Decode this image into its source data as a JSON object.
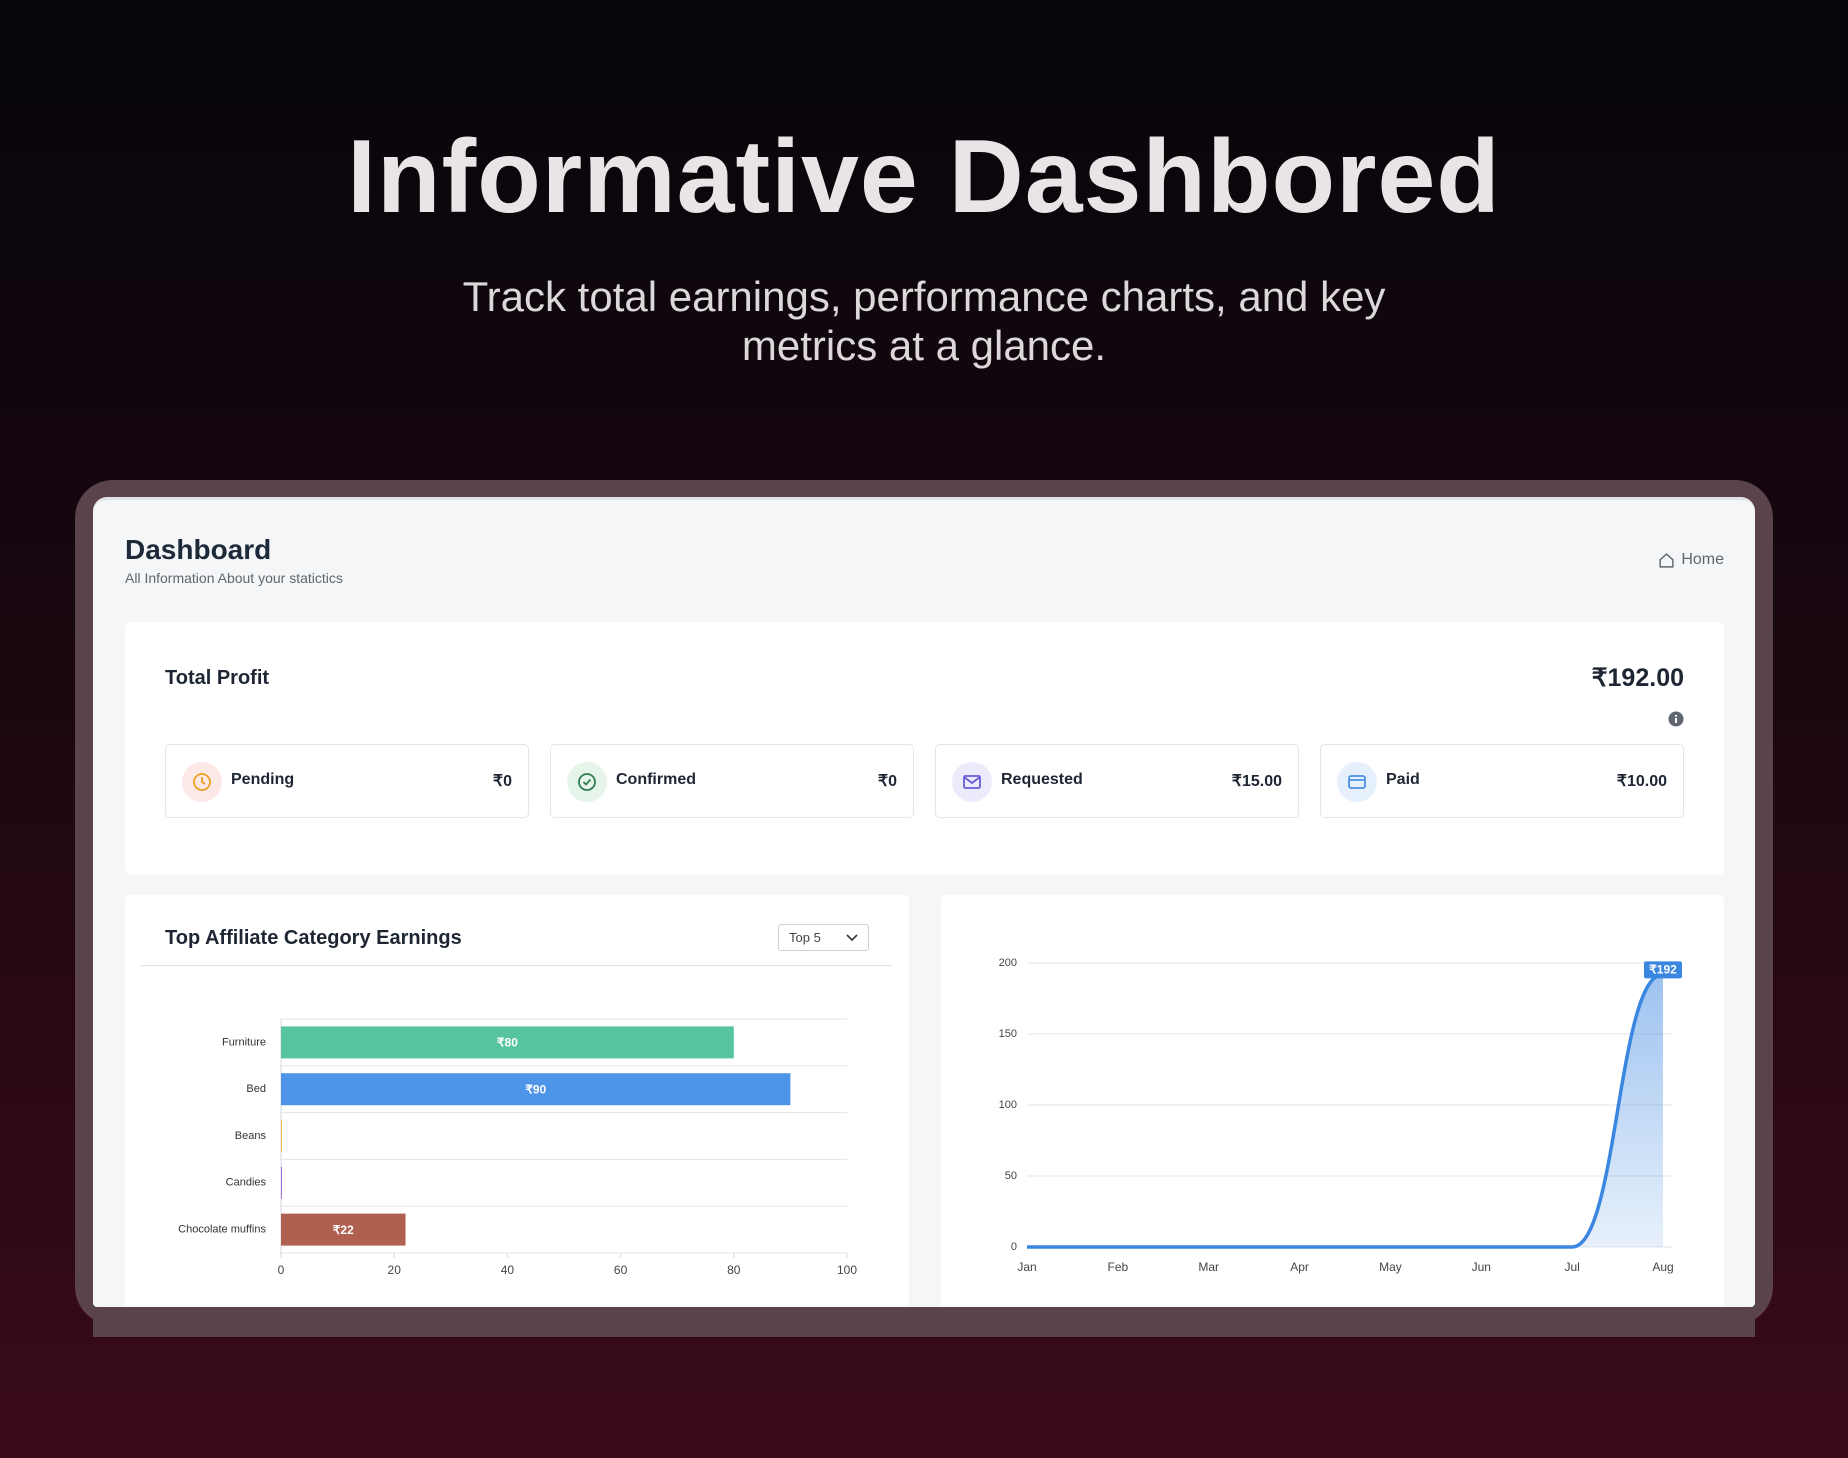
{
  "header": {
    "title": "Informative Dashbored",
    "subtitle": "Track total earnings, performance charts, and key metrics at a glance."
  },
  "dashboard": {
    "title": "Dashboard",
    "subtitle": "All Information About your statictics",
    "breadcrumb": "Home",
    "total_profit": {
      "label": "Total Profit",
      "value": "₹192.00"
    },
    "stats": [
      {
        "label": "Pending",
        "value": "₹0"
      },
      {
        "label": "Confirmed",
        "value": "₹0"
      },
      {
        "label": "Requested",
        "value": "₹15.00"
      },
      {
        "label": "Paid",
        "value": "₹10.00"
      }
    ]
  },
  "chart_data": [
    {
      "type": "bar",
      "orientation": "horizontal",
      "title": "Top Affiliate Category Earnings",
      "filter": "Top 5",
      "categories": [
        "Furniture",
        "Bed",
        "Beans",
        "Candies",
        "Chocolate muffins"
      ],
      "values": [
        80,
        90,
        0,
        0,
        22
      ],
      "value_labels": [
        "₹80",
        "₹90",
        null,
        null,
        "₹22"
      ],
      "colors": [
        "#57c4a0",
        "#4e94e8",
        "#f2b84b",
        "#9b6fd6",
        "#b0604e"
      ],
      "xlim": [
        0,
        100
      ],
      "xticks": [
        0,
        20,
        40,
        60,
        80,
        100
      ],
      "grid": true
    },
    {
      "type": "line",
      "categories": [
        "Jan",
        "Feb",
        "Mar",
        "Apr",
        "May",
        "Jun",
        "Jul",
        "Aug"
      ],
      "values": [
        0,
        0,
        0,
        0,
        0,
        0,
        0,
        192
      ],
      "value_labels": [
        null,
        null,
        null,
        null,
        null,
        null,
        null,
        "₹192"
      ],
      "color": "#3b86e0",
      "area": true,
      "ylim": [
        0,
        200
      ],
      "yticks": [
        0,
        50,
        100,
        150,
        200
      ],
      "grid": true
    }
  ]
}
